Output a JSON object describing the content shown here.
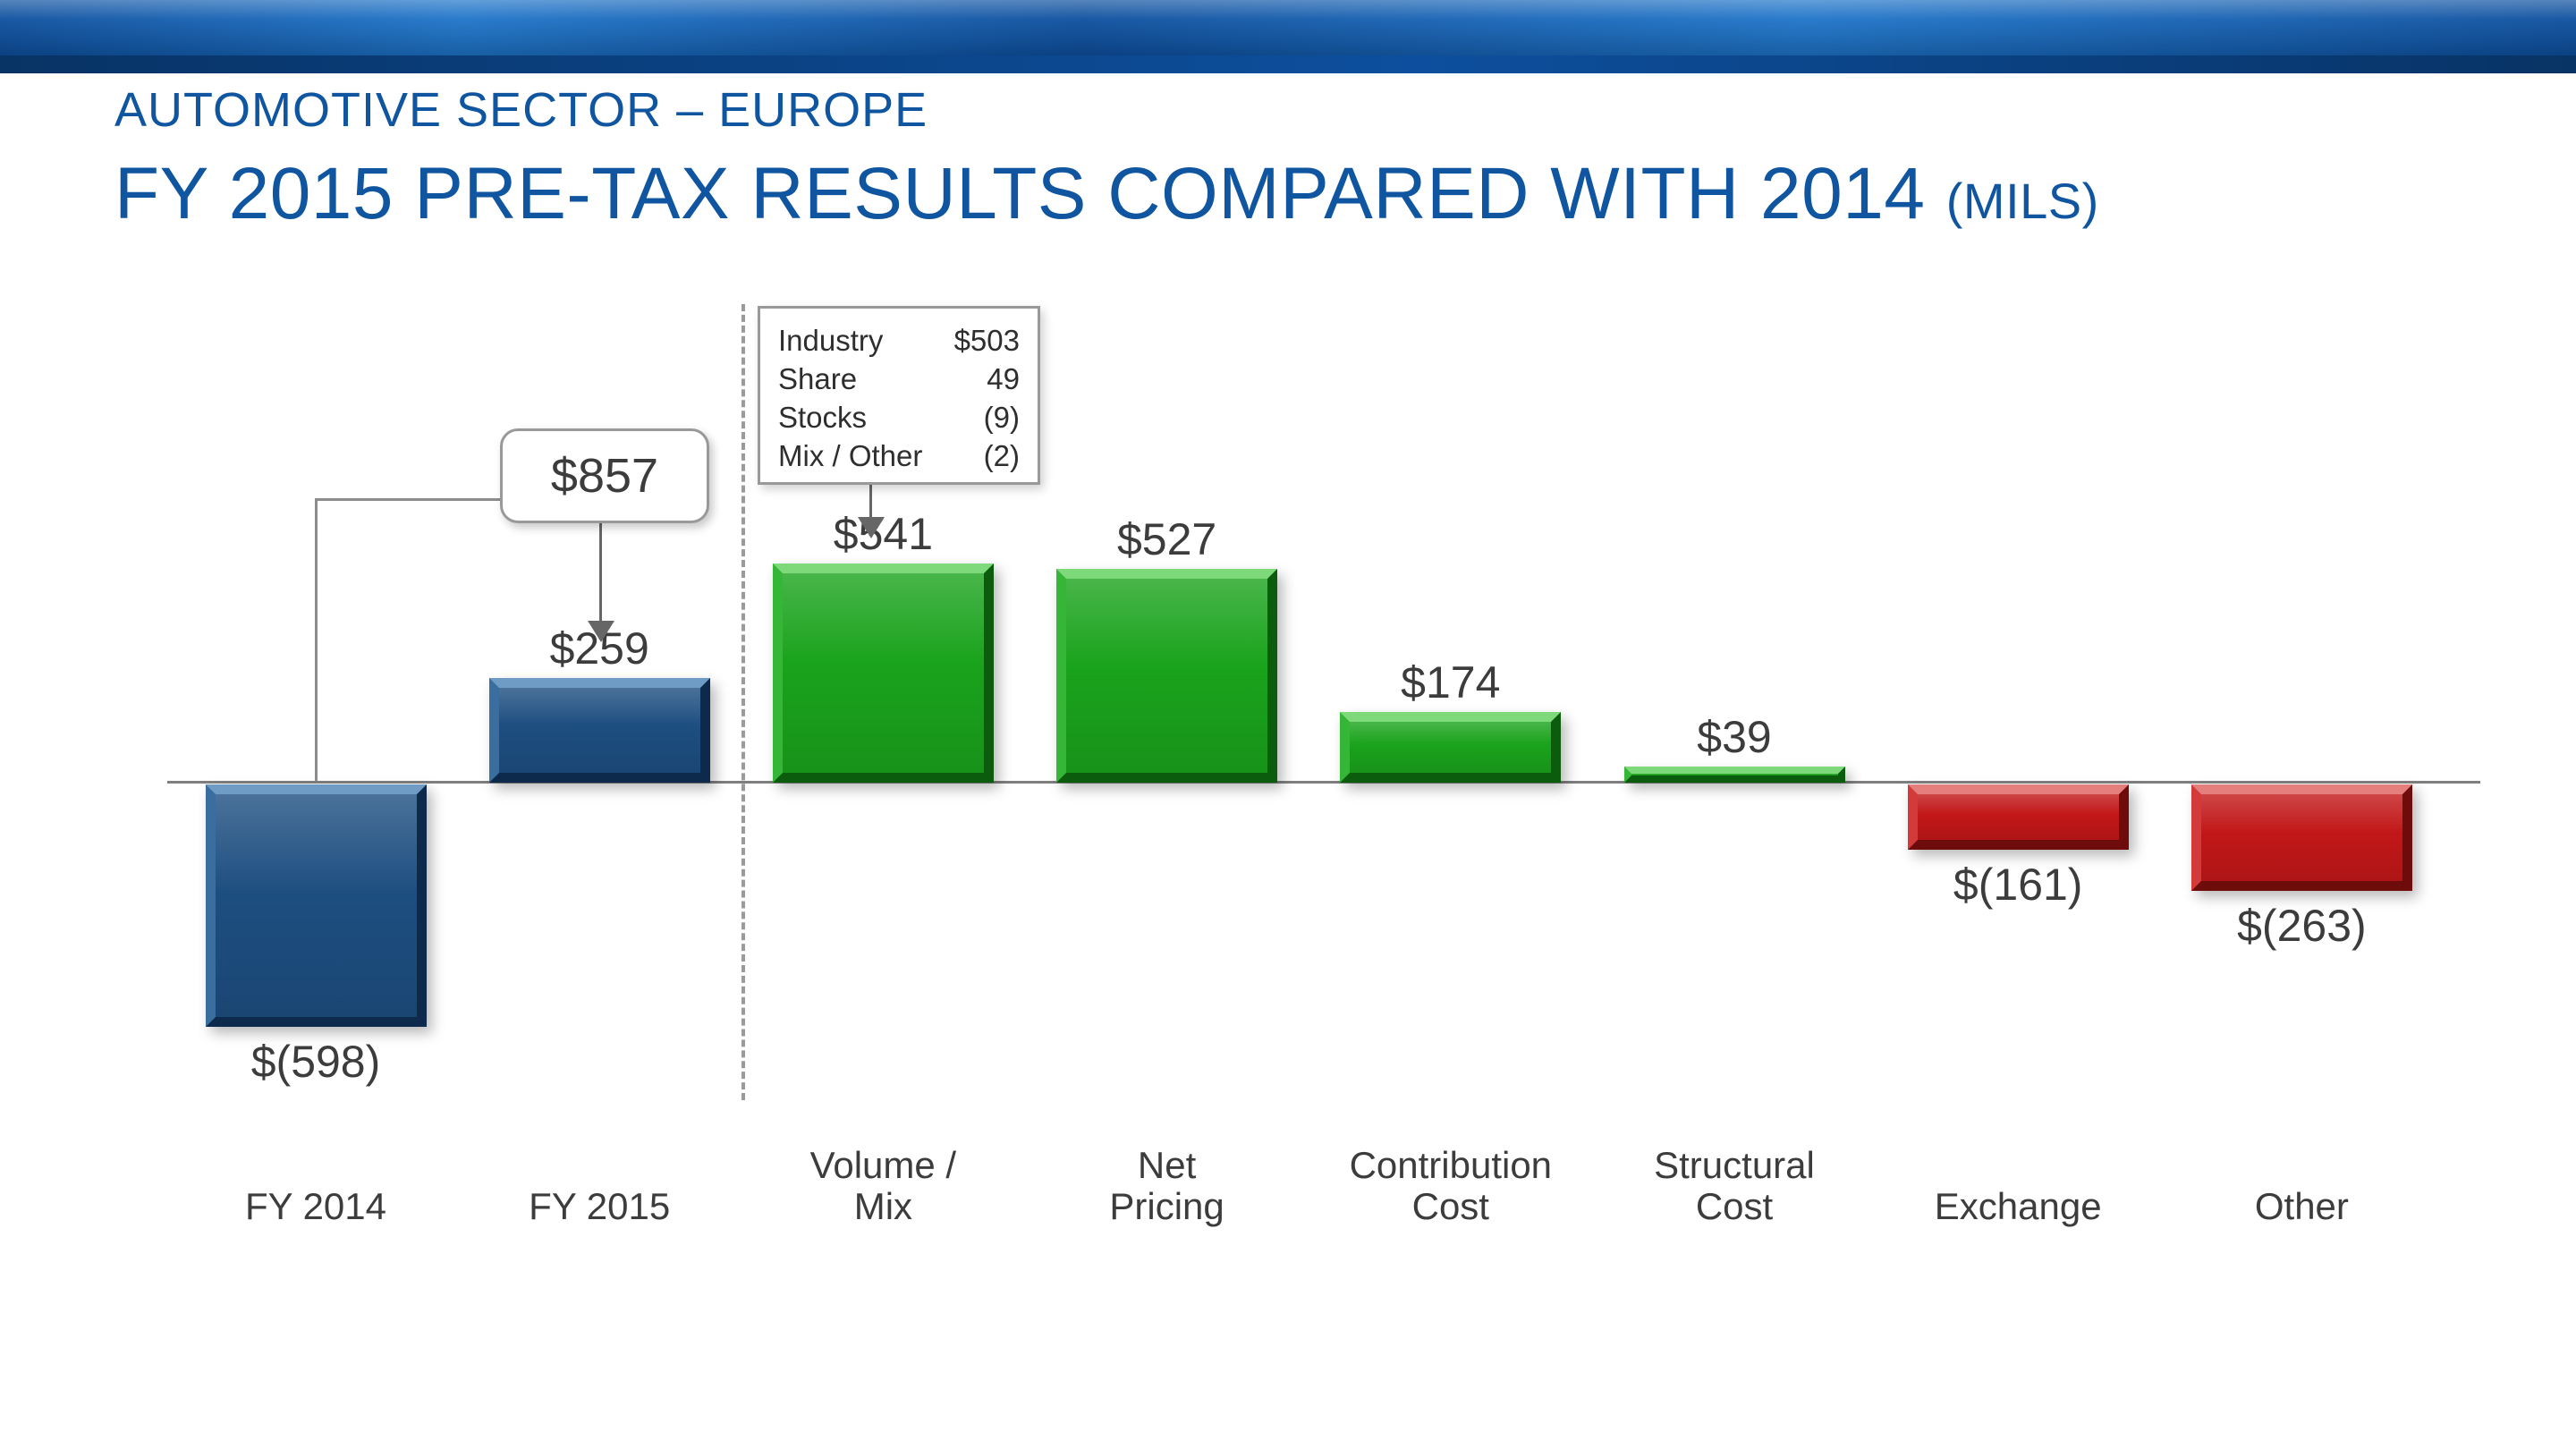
{
  "title": {
    "line1": "AUTOMOTIVE SECTOR – EUROPE",
    "line2": "FY 2015 PRE-TAX RESULTS COMPARED WITH 2014",
    "line2_suffix": "(MILS)"
  },
  "colors": {
    "title_blue": "#0f55a0",
    "stripe_bright": "#1e74c9",
    "stripe_mid": "#0d4f9e",
    "stripe_dark": "#083365",
    "bar_blue": "#1d4e80",
    "bar_blue_light": "#6f9cc4",
    "bar_blue_edge": "#3a6e9f",
    "bar_blue_dark": "#0d2a4c",
    "bar_green": "#1aa31c",
    "bar_green_light": "#7ed97b",
    "bar_green_edge": "#35b637",
    "bar_green_dark": "#0b5c0d",
    "bar_red": "#c21718",
    "bar_red_light": "#e47f7e",
    "bar_red_edge": "#d33a3a",
    "bar_red_dark": "#6e0b0b",
    "axis_gray": "#7f7f7f",
    "connector_gray": "#8c8c8c",
    "connector_dark": "#666666",
    "box_border": "#999999",
    "text_dark": "#3c3c3c"
  },
  "chart_data": {
    "type": "bar",
    "subtype": "waterfall-bridge",
    "title": "FY 2015 PRE-TAX RESULTS COMPARED WITH 2014 (MILS)",
    "unit": "USD millions",
    "categories": [
      "FY 2014",
      "FY 2015",
      "Volume /\nMix",
      "Net\nPricing",
      "Contribution\nCost",
      "Structural\nCost",
      "Exchange",
      "Other"
    ],
    "values": [
      -598,
      259,
      541,
      527,
      174,
      39,
      -161,
      -263
    ],
    "value_labels": [
      "$(598)",
      "$259",
      "$541",
      "$527",
      "$174",
      "$39",
      "$(161)",
      "$(263)"
    ],
    "bar_colors": [
      "blue",
      "blue",
      "green",
      "green",
      "green",
      "green",
      "red",
      "red"
    ],
    "baseline": 0,
    "legend": "none",
    "grid": "off",
    "callout": {
      "label": "$857",
      "connects": [
        "FY 2014",
        "FY 2015"
      ]
    },
    "annotation_box": {
      "points_to": "Volume /\nMix",
      "rows": [
        {
          "label": "Industry",
          "value": "$503"
        },
        {
          "label": "Share",
          "value": "49"
        },
        {
          "label": "Stocks",
          "value": "(9)"
        },
        {
          "label": "Mix / Other",
          "value": "(2)"
        }
      ]
    }
  }
}
